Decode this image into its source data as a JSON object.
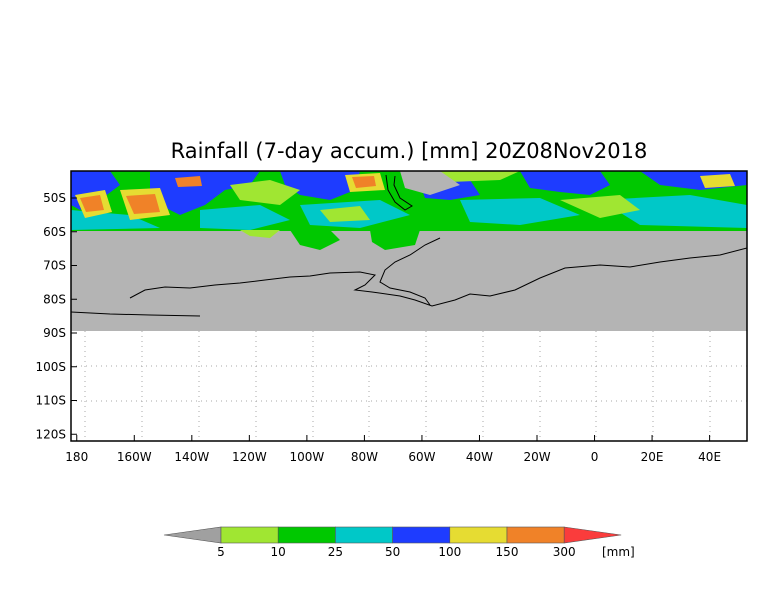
{
  "map": {
    "title": "Rainfall (7-day accum.) [mm] 20Z08Nov2018",
    "lat_axis": {
      "labels": [
        "50S",
        "60S",
        "70S",
        "80S",
        "90S",
        "100S",
        "110S",
        "120S"
      ],
      "values": [
        -50,
        -60,
        -70,
        -80,
        -90,
        -100,
        -110,
        -120
      ]
    },
    "lon_axis": {
      "labels": [
        "180",
        "160W",
        "140W",
        "120W",
        "100W",
        "80W",
        "60W",
        "40W",
        "20W",
        "0",
        "20E",
        "40E"
      ],
      "values": [
        -180,
        -160,
        -140,
        -120,
        -100,
        -80,
        -60,
        -40,
        -20,
        0,
        20,
        40
      ]
    },
    "extent": {
      "lon": [
        -182,
        53
      ],
      "lat": [
        -42,
        -122
      ]
    },
    "gridlines": "dotted",
    "colors": {
      "land_mask": "#b4b4b4",
      "background": "#ffffff"
    }
  },
  "colorbar": {
    "unit": "[mm]",
    "ticks": [
      "5",
      "10",
      "25",
      "50",
      "100",
      "150",
      "300"
    ],
    "bins": [
      {
        "range": "<5",
        "color": "#a0a0a0"
      },
      {
        "range": "5-10",
        "color": "#a0e632"
      },
      {
        "range": "10-25",
        "color": "#00c800"
      },
      {
        "range": "25-50",
        "color": "#00c8c8"
      },
      {
        "range": "50-100",
        "color": "#1e3cff"
      },
      {
        "range": "100-150",
        "color": "#e6dc32"
      },
      {
        "range": "150-300",
        "color": "#f08228"
      },
      {
        "range": ">300",
        "color": "#fa3c3c"
      }
    ]
  }
}
